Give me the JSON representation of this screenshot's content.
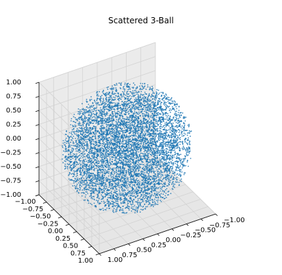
{
  "chart_data": {
    "type": "scatter",
    "projection": "3d",
    "title": "Scattered 3-Ball",
    "shape": "solid unit ball, uniformly scattered points",
    "point_color": "#1f77b4",
    "x_ticks": [
      "−1.00",
      "−0.75",
      "−0.50",
      "−0.25",
      "0.00",
      "0.25",
      "0.50",
      "0.75",
      "1.00"
    ],
    "y_ticks": [
      "−1.00",
      "−0.75",
      "−0.50",
      "−0.25",
      "0.00",
      "0.25",
      "0.50",
      "0.75",
      "1.00"
    ],
    "z_ticks": [
      "−1.00",
      "−0.75",
      "−0.50",
      "−0.25",
      "0.00",
      "0.25",
      "0.50",
      "0.75",
      "1.00"
    ],
    "xlim": [
      -1,
      1
    ],
    "ylim": [
      -1,
      1
    ],
    "zlim": [
      -1,
      1
    ],
    "grid": true,
    "legend": false
  }
}
